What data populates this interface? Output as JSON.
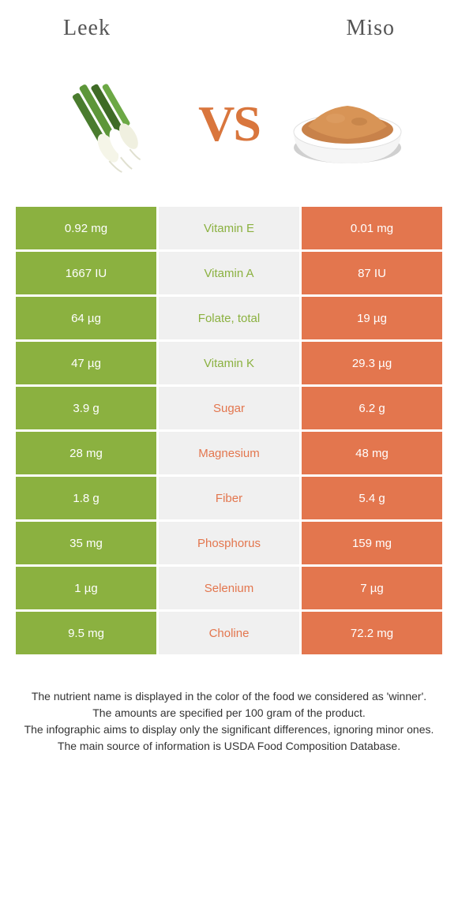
{
  "header": {
    "left_title": "Leek",
    "right_title": "Miso",
    "vs_text": "VS"
  },
  "colors": {
    "leek_green": "#8bb140",
    "miso_orange": "#e3764e",
    "mid_bg": "#f0f0f0",
    "text_white": "#ffffff",
    "title_color": "#555555",
    "vs_color": "#d9763d"
  },
  "rows": [
    {
      "left": "0.92 mg",
      "label": "Vitamin E",
      "right": "0.01 mg",
      "winner": "left"
    },
    {
      "left": "1667 IU",
      "label": "Vitamin A",
      "right": "87 IU",
      "winner": "left"
    },
    {
      "left": "64 µg",
      "label": "Folate, total",
      "right": "19 µg",
      "winner": "left"
    },
    {
      "left": "47 µg",
      "label": "Vitamin K",
      "right": "29.3 µg",
      "winner": "left"
    },
    {
      "left": "3.9 g",
      "label": "Sugar",
      "right": "6.2 g",
      "winner": "right"
    },
    {
      "left": "28 mg",
      "label": "Magnesium",
      "right": "48 mg",
      "winner": "right"
    },
    {
      "left": "1.8 g",
      "label": "Fiber",
      "right": "5.4 g",
      "winner": "right"
    },
    {
      "left": "35 mg",
      "label": "Phosphorus",
      "right": "159 mg",
      "winner": "right"
    },
    {
      "left": "1 µg",
      "label": "Selenium",
      "right": "7 µg",
      "winner": "right"
    },
    {
      "left": "9.5 mg",
      "label": "Choline",
      "right": "72.2 mg",
      "winner": "right"
    }
  ],
  "footer": {
    "line1": "The nutrient name is displayed in the color of the food we considered as 'winner'.",
    "line2": "The amounts are specified per 100 gram of the product.",
    "line3": "The infographic aims to display only the significant differences, ignoring minor ones.",
    "line4": "The main source of information is USDA Food Composition Database."
  }
}
